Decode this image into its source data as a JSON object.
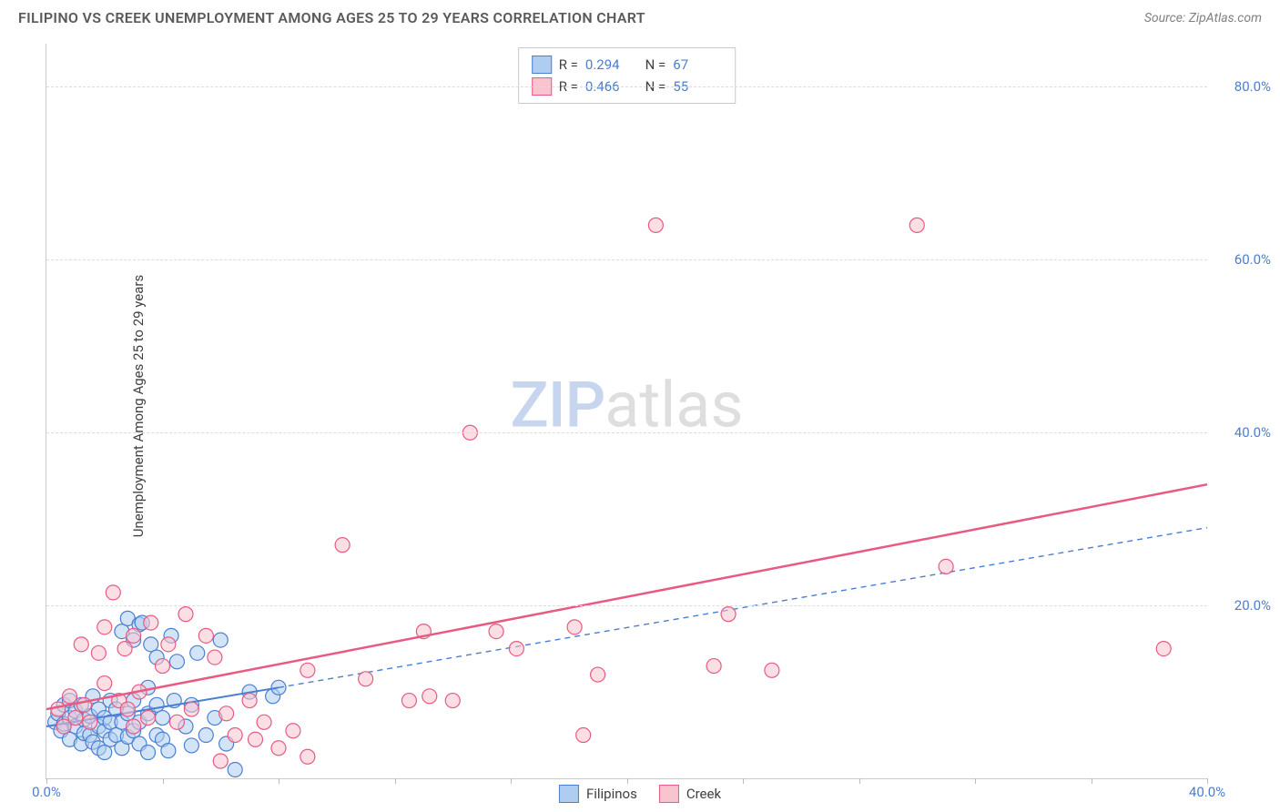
{
  "title": "FILIPINO VS CREEK UNEMPLOYMENT AMONG AGES 25 TO 29 YEARS CORRELATION CHART",
  "source": "Source: ZipAtlas.com",
  "watermark": {
    "zip": "ZIP",
    "atlas": "atlas"
  },
  "chart": {
    "type": "scatter",
    "ylabel": "Unemployment Among Ages 25 to 29 years",
    "xlim": [
      0,
      40
    ],
    "ylim": [
      0,
      85
    ],
    "xtick_positions": [
      0,
      4,
      8,
      12,
      16,
      20,
      24,
      28,
      32,
      36,
      40
    ],
    "xtick_labels": {
      "0": "0.0%",
      "40": "40.0%"
    },
    "ytick_positions": [
      20,
      40,
      60,
      80
    ],
    "ytick_labels": {
      "20": "20.0%",
      "40": "40.0%",
      "60": "60.0%",
      "80": "80.0%"
    },
    "grid_color": "#dcdcdc",
    "background_color": "#ffffff",
    "axis_color": "#cccccc",
    "marker_radius": 8,
    "marker_stroke_width": 1.2,
    "series": [
      {
        "name": "Filipinos",
        "fill": "#aecdf0",
        "fill_opacity": 0.55,
        "stroke": "#4b7fd1",
        "trend": {
          "x1": 0,
          "y1": 6,
          "x2": 8,
          "y2": 10.5,
          "dash_ext_x2": 40,
          "dash_ext_y2": 29,
          "width": 2,
          "color": "#4b7fd1"
        },
        "stats": {
          "R": "0.294",
          "N": "67"
        },
        "points": [
          [
            0.3,
            6.5
          ],
          [
            0.4,
            7.5
          ],
          [
            0.5,
            5.5
          ],
          [
            0.6,
            8.5
          ],
          [
            0.6,
            6.3
          ],
          [
            0.8,
            7.0
          ],
          [
            0.8,
            9.0
          ],
          [
            0.8,
            4.5
          ],
          [
            1.0,
            6.0
          ],
          [
            1.0,
            7.8
          ],
          [
            1.2,
            4.0
          ],
          [
            1.2,
            8.5
          ],
          [
            1.3,
            6.8
          ],
          [
            1.3,
            5.2
          ],
          [
            1.5,
            5.0
          ],
          [
            1.5,
            7.2
          ],
          [
            1.6,
            4.2
          ],
          [
            1.6,
            9.5
          ],
          [
            1.8,
            3.5
          ],
          [
            1.8,
            6.0
          ],
          [
            1.8,
            8.0
          ],
          [
            2.0,
            5.5
          ],
          [
            2.0,
            7.0
          ],
          [
            2.0,
            3.0
          ],
          [
            2.2,
            9.0
          ],
          [
            2.2,
            4.5
          ],
          [
            2.2,
            6.5
          ],
          [
            2.4,
            5.0
          ],
          [
            2.4,
            8.0
          ],
          [
            2.6,
            17.0
          ],
          [
            2.6,
            6.5
          ],
          [
            2.6,
            3.5
          ],
          [
            2.8,
            18.5
          ],
          [
            2.8,
            4.8
          ],
          [
            2.8,
            7.5
          ],
          [
            3.0,
            16.0
          ],
          [
            3.0,
            5.5
          ],
          [
            3.0,
            9.0
          ],
          [
            3.2,
            17.8
          ],
          [
            3.2,
            4.0
          ],
          [
            3.2,
            6.5
          ],
          [
            3.3,
            18.0
          ],
          [
            3.5,
            3.0
          ],
          [
            3.5,
            10.5
          ],
          [
            3.5,
            7.5
          ],
          [
            3.6,
            15.5
          ],
          [
            3.8,
            5.0
          ],
          [
            3.8,
            8.5
          ],
          [
            3.8,
            14.0
          ],
          [
            4.0,
            4.5
          ],
          [
            4.0,
            7.0
          ],
          [
            4.2,
            3.2
          ],
          [
            4.3,
            16.5
          ],
          [
            4.4,
            9.0
          ],
          [
            4.5,
            13.5
          ],
          [
            4.8,
            6.0
          ],
          [
            5.0,
            3.8
          ],
          [
            5.0,
            8.5
          ],
          [
            5.2,
            14.5
          ],
          [
            5.5,
            5.0
          ],
          [
            5.8,
            7.0
          ],
          [
            6.0,
            16.0
          ],
          [
            6.2,
            4.0
          ],
          [
            6.5,
            1.0
          ],
          [
            7.0,
            10.0
          ],
          [
            7.8,
            9.5
          ],
          [
            8.0,
            10.5
          ]
        ]
      },
      {
        "name": "Creek",
        "fill": "#f7c4d0",
        "fill_opacity": 0.55,
        "stroke": "#e85a82",
        "trend": {
          "x1": 0,
          "y1": 8,
          "x2": 40,
          "y2": 34,
          "width": 2.5,
          "color": "#e85a82"
        },
        "stats": {
          "R": "0.466",
          "N": "55"
        },
        "points": [
          [
            0.4,
            8.0
          ],
          [
            0.6,
            6.0
          ],
          [
            0.8,
            9.5
          ],
          [
            1.0,
            7.0
          ],
          [
            1.2,
            15.5
          ],
          [
            1.3,
            8.5
          ],
          [
            1.5,
            6.5
          ],
          [
            1.8,
            14.5
          ],
          [
            2.0,
            11.0
          ],
          [
            2.0,
            17.5
          ],
          [
            2.3,
            21.5
          ],
          [
            2.5,
            9.0
          ],
          [
            2.7,
            15.0
          ],
          [
            2.8,
            8.0
          ],
          [
            3.0,
            16.5
          ],
          [
            3.0,
            6.0
          ],
          [
            3.2,
            10.0
          ],
          [
            3.5,
            7.0
          ],
          [
            3.6,
            18.0
          ],
          [
            4.0,
            13.0
          ],
          [
            4.2,
            15.5
          ],
          [
            4.5,
            6.5
          ],
          [
            4.8,
            19.0
          ],
          [
            5.0,
            8.0
          ],
          [
            5.5,
            16.5
          ],
          [
            5.8,
            14.0
          ],
          [
            6.0,
            2.0
          ],
          [
            6.2,
            7.5
          ],
          [
            6.5,
            5.0
          ],
          [
            7.0,
            9.0
          ],
          [
            7.2,
            4.5
          ],
          [
            7.5,
            6.5
          ],
          [
            8.0,
            3.5
          ],
          [
            8.5,
            5.5
          ],
          [
            9.0,
            12.5
          ],
          [
            9.0,
            2.5
          ],
          [
            10.2,
            27.0
          ],
          [
            11.0,
            11.5
          ],
          [
            12.5,
            9.0
          ],
          [
            13.0,
            17.0
          ],
          [
            13.2,
            9.5
          ],
          [
            14.0,
            9.0
          ],
          [
            14.6,
            40.0
          ],
          [
            15.5,
            17.0
          ],
          [
            16.2,
            15.0
          ],
          [
            18.2,
            17.5
          ],
          [
            19.0,
            12.0
          ],
          [
            21.0,
            64.0
          ],
          [
            23.0,
            13.0
          ],
          [
            23.5,
            19.0
          ],
          [
            25.0,
            12.5
          ],
          [
            30.0,
            64.0
          ],
          [
            31.0,
            24.5
          ],
          [
            38.5,
            15.0
          ],
          [
            18.5,
            5.0
          ]
        ]
      }
    ]
  },
  "legend": {
    "items": [
      {
        "label": "Filipinos",
        "fill": "#aecdf0",
        "stroke": "#4b7fd1"
      },
      {
        "label": "Creek",
        "fill": "#f7c4d0",
        "stroke": "#e85a82"
      }
    ]
  }
}
